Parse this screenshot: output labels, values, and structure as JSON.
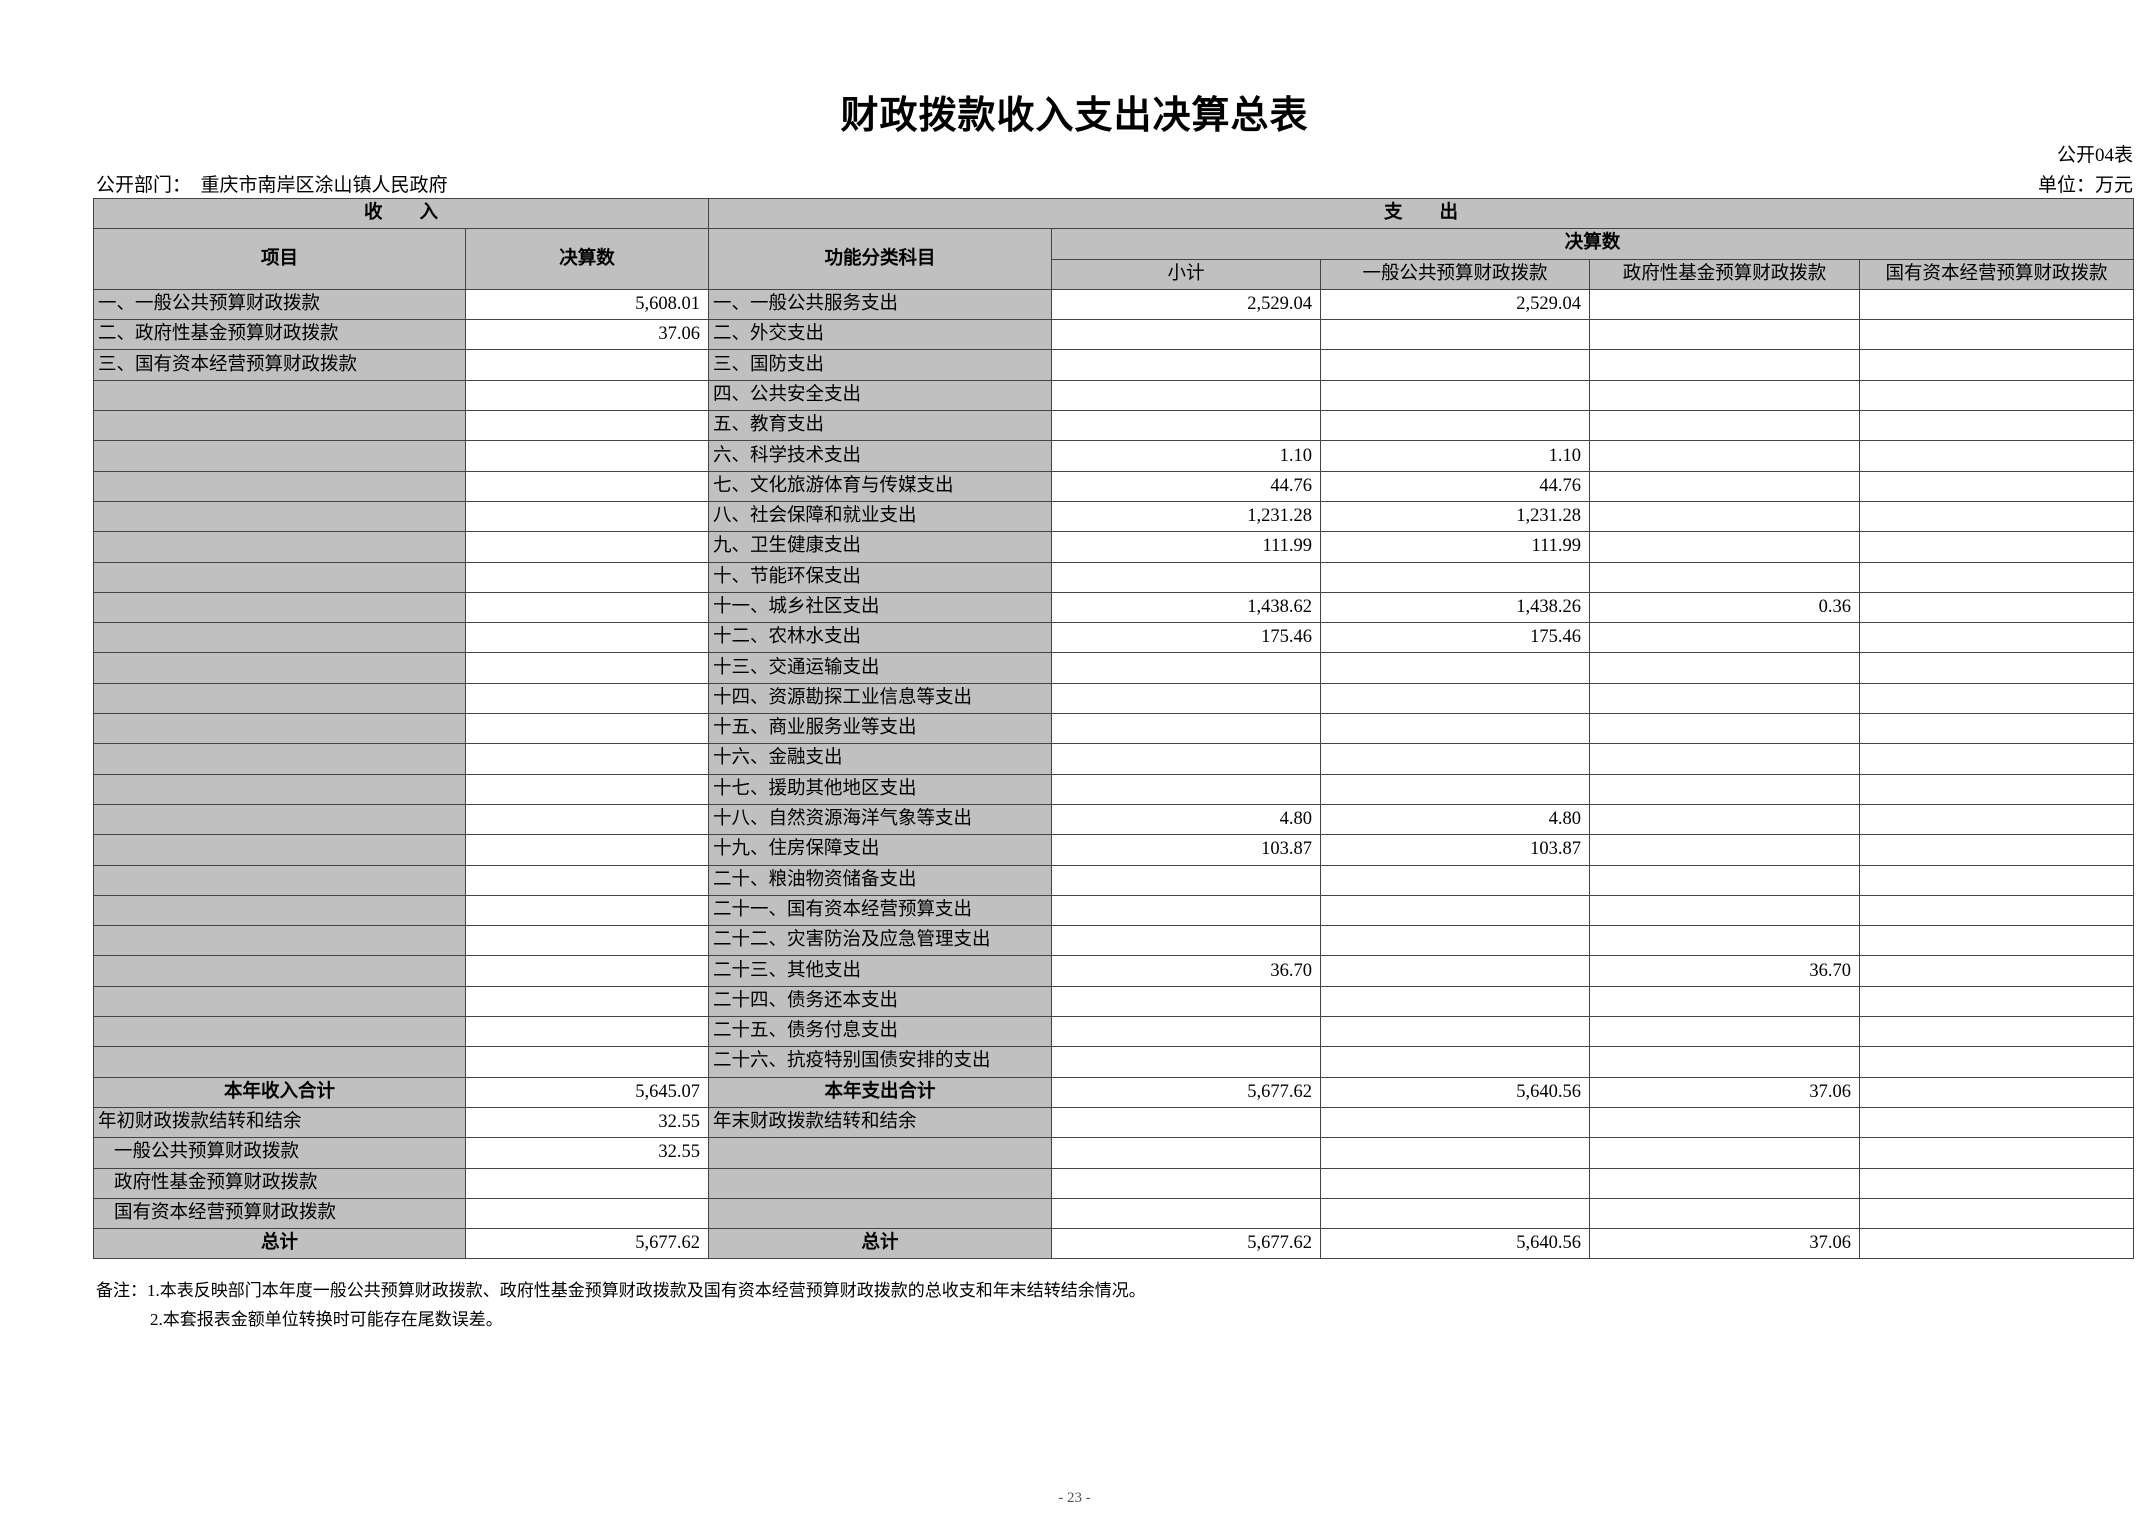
{
  "title": "财政拨款收入支出决算总表",
  "table_code": "公开04表",
  "department_label": "公开部门：",
  "department": "重庆市南岸区涂山镇人民政府",
  "unit": "单位：万元",
  "headers": {
    "income": "收　　入",
    "expense": "支　　出",
    "item": "项目",
    "amount": "决算数",
    "function": "功能分类科目",
    "final": "决算数",
    "subtotal": "小计",
    "general": "一般公共预算财政拨款",
    "gov_fund": "政府性基金预算财政拨款",
    "state_capital": "国有资本经营预算财政拨款"
  },
  "rows": [
    {
      "income_item": "一、一般公共预算财政拨款",
      "income_amount": "5,608.01",
      "func": "一、一般公共服务支出",
      "subtotal": "2,529.04",
      "general": "2,529.04",
      "gov_fund": "",
      "state_capital": ""
    },
    {
      "income_item": "二、政府性基金预算财政拨款",
      "income_amount": "37.06",
      "func": "二、外交支出",
      "subtotal": "",
      "general": "",
      "gov_fund": "",
      "state_capital": ""
    },
    {
      "income_item": "三、国有资本经营预算财政拨款",
      "income_amount": "",
      "func": "三、国防支出",
      "subtotal": "",
      "general": "",
      "gov_fund": "",
      "state_capital": ""
    },
    {
      "income_item": "",
      "income_amount": "",
      "func": "四、公共安全支出",
      "subtotal": "",
      "general": "",
      "gov_fund": "",
      "state_capital": ""
    },
    {
      "income_item": "",
      "income_amount": "",
      "func": "五、教育支出",
      "subtotal": "",
      "general": "",
      "gov_fund": "",
      "state_capital": ""
    },
    {
      "income_item": "",
      "income_amount": "",
      "func": "六、科学技术支出",
      "subtotal": "1.10",
      "general": "1.10",
      "gov_fund": "",
      "state_capital": ""
    },
    {
      "income_item": "",
      "income_amount": "",
      "func": "七、文化旅游体育与传媒支出",
      "subtotal": "44.76",
      "general": "44.76",
      "gov_fund": "",
      "state_capital": ""
    },
    {
      "income_item": "",
      "income_amount": "",
      "func": "八、社会保障和就业支出",
      "subtotal": "1,231.28",
      "general": "1,231.28",
      "gov_fund": "",
      "state_capital": ""
    },
    {
      "income_item": "",
      "income_amount": "",
      "func": "九、卫生健康支出",
      "subtotal": "111.99",
      "general": "111.99",
      "gov_fund": "",
      "state_capital": ""
    },
    {
      "income_item": "",
      "income_amount": "",
      "func": "十、节能环保支出",
      "subtotal": "",
      "general": "",
      "gov_fund": "",
      "state_capital": ""
    },
    {
      "income_item": "",
      "income_amount": "",
      "func": "十一、城乡社区支出",
      "subtotal": "1,438.62",
      "general": "1,438.26",
      "gov_fund": "0.36",
      "state_capital": ""
    },
    {
      "income_item": "",
      "income_amount": "",
      "func": "十二、农林水支出",
      "subtotal": "175.46",
      "general": "175.46",
      "gov_fund": "",
      "state_capital": ""
    },
    {
      "income_item": "",
      "income_amount": "",
      "func": "十三、交通运输支出",
      "subtotal": "",
      "general": "",
      "gov_fund": "",
      "state_capital": ""
    },
    {
      "income_item": "",
      "income_amount": "",
      "func": "十四、资源勘探工业信息等支出",
      "subtotal": "",
      "general": "",
      "gov_fund": "",
      "state_capital": ""
    },
    {
      "income_item": "",
      "income_amount": "",
      "func": "十五、商业服务业等支出",
      "subtotal": "",
      "general": "",
      "gov_fund": "",
      "state_capital": ""
    },
    {
      "income_item": "",
      "income_amount": "",
      "func": "十六、金融支出",
      "subtotal": "",
      "general": "",
      "gov_fund": "",
      "state_capital": ""
    },
    {
      "income_item": "",
      "income_amount": "",
      "func": "十七、援助其他地区支出",
      "subtotal": "",
      "general": "",
      "gov_fund": "",
      "state_capital": ""
    },
    {
      "income_item": "",
      "income_amount": "",
      "func": "十八、自然资源海洋气象等支出",
      "subtotal": "4.80",
      "general": "4.80",
      "gov_fund": "",
      "state_capital": ""
    },
    {
      "income_item": "",
      "income_amount": "",
      "func": "十九、住房保障支出",
      "subtotal": "103.87",
      "general": "103.87",
      "gov_fund": "",
      "state_capital": ""
    },
    {
      "income_item": "",
      "income_amount": "",
      "func": "二十、粮油物资储备支出",
      "subtotal": "",
      "general": "",
      "gov_fund": "",
      "state_capital": ""
    },
    {
      "income_item": "",
      "income_amount": "",
      "func": "二十一、国有资本经营预算支出",
      "subtotal": "",
      "general": "",
      "gov_fund": "",
      "state_capital": ""
    },
    {
      "income_item": "",
      "income_amount": "",
      "func": "二十二、灾害防治及应急管理支出",
      "subtotal": "",
      "general": "",
      "gov_fund": "",
      "state_capital": ""
    },
    {
      "income_item": "",
      "income_amount": "",
      "func": "二十三、其他支出",
      "subtotal": "36.70",
      "general": "",
      "gov_fund": "36.70",
      "state_capital": ""
    },
    {
      "income_item": "",
      "income_amount": "",
      "func": "二十四、债务还本支出",
      "subtotal": "",
      "general": "",
      "gov_fund": "",
      "state_capital": ""
    },
    {
      "income_item": "",
      "income_amount": "",
      "func": "二十五、债务付息支出",
      "subtotal": "",
      "general": "",
      "gov_fund": "",
      "state_capital": ""
    },
    {
      "income_item": "",
      "income_amount": "",
      "func": "二十六、抗疫特别国债安排的支出",
      "subtotal": "",
      "general": "",
      "gov_fund": "",
      "state_capital": ""
    }
  ],
  "year_total": {
    "income_label": "本年收入合计",
    "income_amount": "5,645.07",
    "expense_label": "本年支出合计",
    "subtotal": "5,677.62",
    "general": "5,640.56",
    "gov_fund": "37.06",
    "state_capital": ""
  },
  "carryover": [
    {
      "income_item": "年初财政拨款结转和结余",
      "income_amount": "32.55",
      "func": "年末财政拨款结转和结余",
      "indent": false
    },
    {
      "income_item": "一般公共预算财政拨款",
      "income_amount": "32.55",
      "func": "",
      "indent": true
    },
    {
      "income_item": "政府性基金预算财政拨款",
      "income_amount": "",
      "func": "",
      "indent": true
    },
    {
      "income_item": "国有资本经营预算财政拨款",
      "income_amount": "",
      "func": "",
      "indent": true
    }
  ],
  "grand_total": {
    "income_label": "总计",
    "income_amount": "5,677.62",
    "expense_label": "总计",
    "subtotal": "5,677.62",
    "general": "5,640.56",
    "gov_fund": "37.06",
    "state_capital": ""
  },
  "notes": [
    "备注：1.本表反映部门本年度一般公共预算财政拨款、政府性基金预算财政拨款及国有资本经营预算财政拨款的总收支和年末结转结余情况。",
    "2.本套报表金额单位转换时可能存在尾数误差。"
  ],
  "page_number": "- 23 -"
}
